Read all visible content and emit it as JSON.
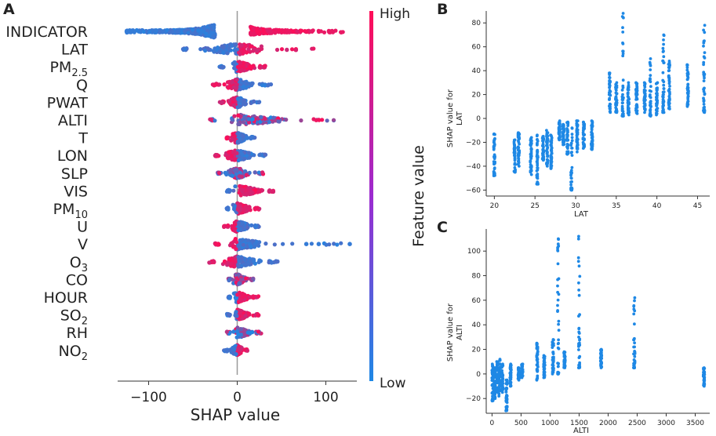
{
  "colors": {
    "low": "#1e88e5",
    "high": "#ff0d57",
    "axis": "#333333",
    "zero": "#999999"
  },
  "panel_a": {
    "label": "A",
    "colorbar": {
      "high": "High",
      "low": "Low",
      "title": "Feature value"
    },
    "features": [
      {
        "name": "INDICATOR",
        "sub": ""
      },
      {
        "name": "LAT",
        "sub": ""
      },
      {
        "name": "PM",
        "sub": "2.5"
      },
      {
        "name": "Q",
        "sub": ""
      },
      {
        "name": "PWAT",
        "sub": ""
      },
      {
        "name": "ALTI",
        "sub": ""
      },
      {
        "name": "T",
        "sub": ""
      },
      {
        "name": "LON",
        "sub": ""
      },
      {
        "name": "SLP",
        "sub": ""
      },
      {
        "name": "VIS",
        "sub": ""
      },
      {
        "name": "PM",
        "sub": "10"
      },
      {
        "name": "U",
        "sub": ""
      },
      {
        "name": "V",
        "sub": ""
      },
      {
        "name": "O",
        "sub": "3"
      },
      {
        "name": "CO",
        "sub": ""
      },
      {
        "name": "HOUR",
        "sub": ""
      },
      {
        "name": "SO",
        "sub": "2"
      },
      {
        "name": "RH",
        "sub": ""
      },
      {
        "name": "NO",
        "sub": "2"
      }
    ],
    "xlabel": "SHAP value",
    "xticks": [
      -100,
      0,
      100
    ],
    "xtick_labels": [
      "−100",
      "0",
      "100"
    ]
  },
  "panel_b": {
    "label": "B",
    "ylabel_line1": "SHAP value for",
    "ylabel_line2": "LAT",
    "xlabel": "LAT",
    "xticks": [
      20,
      25,
      30,
      35,
      40,
      45
    ],
    "xtick_labels": [
      "20",
      "25",
      "30",
      "35",
      "40",
      "45"
    ],
    "yticks": [
      -60,
      -40,
      -20,
      0,
      20,
      40,
      60,
      80
    ],
    "ytick_labels": [
      "−60",
      "−40",
      "−20",
      "0",
      "20",
      "40",
      "60",
      "80"
    ]
  },
  "panel_c": {
    "label": "C",
    "ylabel_line1": "SHAP value for",
    "ylabel_line2": "ALTI",
    "xlabel": "ALTI",
    "xticks": [
      0,
      500,
      1000,
      1500,
      2000,
      2500,
      3000,
      3500
    ],
    "xtick_labels": [
      "0",
      "500",
      "1000",
      "1500",
      "2000",
      "2500",
      "3000",
      "3500"
    ],
    "yticks": [
      -20,
      0,
      20,
      40,
      60,
      80,
      100
    ],
    "ytick_labels": [
      "−20",
      "0",
      "20",
      "40",
      "60",
      "80",
      "100"
    ]
  },
  "chart_data": [
    {
      "type": "scatter",
      "subtype": "shap-beeswarm-summary",
      "title": "",
      "xlabel": "SHAP value",
      "ylabel": "",
      "xlim": [
        -135,
        135
      ],
      "color_scale": {
        "low": "Low",
        "high": "High",
        "label": "Feature value"
      },
      "features": [
        "INDICATOR",
        "LAT",
        "PM2.5",
        "Q",
        "PWAT",
        "ALTI",
        "T",
        "LON",
        "SLP",
        "VIS",
        "PM10",
        "U",
        "V",
        "O3",
        "CO",
        "HOUR",
        "SO2",
        "RH",
        "NO2"
      ],
      "series": [
        {
          "name": "INDICATOR",
          "x_range": [
            -125,
            120
          ],
          "bulk_low": [
            -115,
            -25
          ],
          "bulk_high": [
            15,
            85
          ],
          "low_side": "negative"
        },
        {
          "name": "LAT",
          "x_range": [
            -62,
            88
          ],
          "bulk": [
            -55,
            45
          ],
          "low_side": "negative"
        },
        {
          "name": "PM2.5",
          "x_range": [
            -20,
            32
          ],
          "bulk": [
            -15,
            25
          ],
          "low_side": "negative"
        },
        {
          "name": "Q",
          "x_range": [
            -28,
            40
          ],
          "bulk": [
            -20,
            25
          ],
          "low_side": "positive"
        },
        {
          "name": "PWAT",
          "x_range": [
            -20,
            25
          ],
          "bulk": [
            -15,
            15
          ],
          "low_side": "positive"
        },
        {
          "name": "ALTI",
          "x_range": [
            -32,
            112
          ],
          "bulk": [
            -25,
            70
          ],
          "low_side": "mixed"
        },
        {
          "name": "T",
          "x_range": [
            -12,
            20
          ],
          "bulk": [
            -10,
            15
          ],
          "low_side": "positive"
        },
        {
          "name": "LON",
          "x_range": [
            -25,
            35
          ],
          "bulk": [
            -20,
            25
          ],
          "low_side": "positive"
        },
        {
          "name": "SLP",
          "x_range": [
            -22,
            30
          ],
          "bulk": [
            -18,
            20
          ],
          "low_side": "mixed"
        },
        {
          "name": "VIS",
          "x_range": [
            -12,
            42
          ],
          "bulk": [
            -8,
            35
          ],
          "low_side": "negative"
        },
        {
          "name": "PM10",
          "x_range": [
            -12,
            25
          ],
          "bulk": [
            -10,
            20
          ],
          "low_side": "negative"
        },
        {
          "name": "U",
          "x_range": [
            -15,
            25
          ],
          "bulk": [
            -10,
            20
          ],
          "low_side": "positive"
        },
        {
          "name": "V",
          "x_range": [
            -25,
            128
          ],
          "bulk": [
            -20,
            40
          ],
          "low_side": "positive",
          "outliers": [
            78,
            92,
            127
          ]
        },
        {
          "name": "O3",
          "x_range": [
            -32,
            48
          ],
          "bulk": [
            -25,
            35
          ],
          "low_side": "positive"
        },
        {
          "name": "CO",
          "x_range": [
            -10,
            18
          ],
          "bulk": [
            -8,
            15
          ],
          "low_side": "mixed"
        },
        {
          "name": "HOUR",
          "x_range": [
            -10,
            25
          ],
          "bulk": [
            -8,
            18
          ],
          "low_side": "negative"
        },
        {
          "name": "SO2",
          "x_range": [
            -12,
            25
          ],
          "bulk": [
            -8,
            18
          ],
          "low_side": "negative"
        },
        {
          "name": "RH",
          "x_range": [
            -12,
            28
          ],
          "bulk": [
            -8,
            20
          ],
          "low_side": "mixed"
        },
        {
          "name": "NO2",
          "x_range": [
            -15,
            12
          ],
          "bulk": [
            -10,
            8
          ],
          "low_side": "negative"
        }
      ]
    },
    {
      "type": "scatter",
      "subtype": "shap-dependence",
      "title": "",
      "xlabel": "LAT",
      "ylabel": "SHAP value for LAT",
      "xlim": [
        19,
        46.5
      ],
      "ylim": [
        -65,
        90
      ],
      "series": [
        {
          "name": "LAT",
          "columns": [
            {
              "x": 20,
              "y_range": [
                -48,
                -13
              ]
            },
            {
              "x": 22.5,
              "y_range": [
                -45,
                -18
              ]
            },
            {
              "x": 23,
              "y_range": [
                -40,
                -12
              ]
            },
            {
              "x": 24.5,
              "y_range": [
                -47,
                -16
              ]
            },
            {
              "x": 25.3,
              "y_range": [
                -55,
                -14
              ]
            },
            {
              "x": 26,
              "y_range": [
                -35,
                -15
              ]
            },
            {
              "x": 26.5,
              "y_range": [
                -40,
                -10
              ]
            },
            {
              "x": 27,
              "y_range": [
                -42,
                -14
              ]
            },
            {
              "x": 28,
              "y_range": [
                -18,
                -2
              ]
            },
            {
              "x": 28.5,
              "y_range": [
                -22,
                -5
              ]
            },
            {
              "x": 29,
              "y_range": [
                -30,
                -3
              ]
            },
            {
              "x": 29.5,
              "y_range": [
                -60,
                -8
              ]
            },
            {
              "x": 30.2,
              "y_range": [
                -28,
                -2
              ]
            },
            {
              "x": 31,
              "y_range": [
                -25,
                -3
              ]
            },
            {
              "x": 32,
              "y_range": [
                -26,
                -2
              ]
            },
            {
              "x": 34.2,
              "y_range": [
                5,
                38
              ]
            },
            {
              "x": 35,
              "y_range": [
                5,
                30
              ]
            },
            {
              "x": 35.8,
              "y_range": [
                2,
                88
              ]
            },
            {
              "x": 36.5,
              "y_range": [
                3,
                30
              ]
            },
            {
              "x": 37.5,
              "y_range": [
                4,
                30
              ]
            },
            {
              "x": 38.5,
              "y_range": [
                5,
                30
              ]
            },
            {
              "x": 39.2,
              "y_range": [
                2,
                50
              ]
            },
            {
              "x": 40,
              "y_range": [
                3,
                30
              ]
            },
            {
              "x": 40.8,
              "y_range": [
                5,
                70
              ]
            },
            {
              "x": 41.5,
              "y_range": [
                8,
                48
              ]
            },
            {
              "x": 43.8,
              "y_range": [
                10,
                45
              ]
            },
            {
              "x": 45.8,
              "y_range": [
                5,
                78
              ]
            }
          ]
        }
      ]
    },
    {
      "type": "scatter",
      "subtype": "shap-dependence",
      "title": "",
      "xlabel": "ALTI",
      "ylabel": "SHAP value for ALTI",
      "xlim": [
        -100,
        3750
      ],
      "ylim": [
        -32,
        118
      ],
      "series": [
        {
          "name": "ALTI",
          "columns": [
            {
              "x": 10,
              "y_range": [
                -22,
                8
              ]
            },
            {
              "x": 50,
              "y_range": [
                -20,
                5
              ]
            },
            {
              "x": 90,
              "y_range": [
                -15,
                10
              ]
            },
            {
              "x": 130,
              "y_range": [
                -18,
                12
              ]
            },
            {
              "x": 180,
              "y_range": [
                -15,
                8
              ]
            },
            {
              "x": 250,
              "y_range": [
                -30,
                -5
              ]
            },
            {
              "x": 320,
              "y_range": [
                -10,
                8
              ]
            },
            {
              "x": 460,
              "y_range": [
                -5,
                5
              ]
            },
            {
              "x": 520,
              "y_range": [
                -3,
                8
              ]
            },
            {
              "x": 780,
              "y_range": [
                -5,
                25
              ]
            },
            {
              "x": 900,
              "y_range": [
                -3,
                15
              ]
            },
            {
              "x": 1050,
              "y_range": [
                0,
                28
              ]
            },
            {
              "x": 1140,
              "y_range": [
                0,
                110
              ]
            },
            {
              "x": 1250,
              "y_range": [
                5,
                18
              ]
            },
            {
              "x": 1500,
              "y_range": [
                5,
                112
              ]
            },
            {
              "x": 1880,
              "y_range": [
                5,
                20
              ]
            },
            {
              "x": 2450,
              "y_range": [
                5,
                62
              ]
            },
            {
              "x": 3650,
              "y_range": [
                -10,
                5
              ]
            }
          ]
        }
      ]
    }
  ]
}
